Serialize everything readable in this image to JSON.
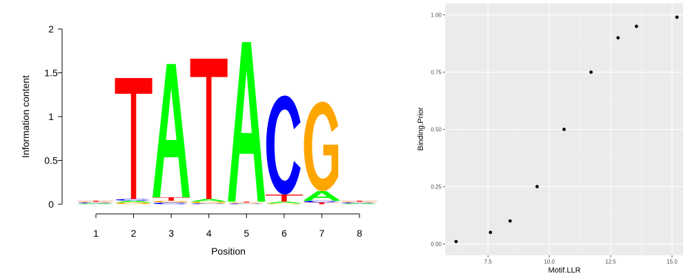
{
  "chart_data": [
    {
      "type": "sequence-logo",
      "xlabel": "Position",
      "ylabel": "Information content",
      "ylim": [
        0,
        2
      ],
      "yticks": [
        0,
        0.5,
        1,
        1.5,
        2
      ],
      "ytick_labels": [
        "0",
        "0.5",
        "1",
        "1.5",
        "2"
      ],
      "positions": [
        "1",
        "2",
        "3",
        "4",
        "5",
        "6",
        "7",
        "8"
      ],
      "colors": {
        "A": "#00ff00",
        "C": "#0000ff",
        "G": "#ffa500",
        "T": "#ff0000"
      },
      "columns": [
        {
          "position": 1,
          "letters": [
            {
              "base": "A",
              "height": 0.01
            },
            {
              "base": "C",
              "height": 0.01
            },
            {
              "base": "G",
              "height": 0.01
            },
            {
              "base": "T",
              "height": 0.01
            }
          ]
        },
        {
          "position": 2,
          "letters": [
            {
              "base": "G",
              "height": 0.02
            },
            {
              "base": "A",
              "height": 0.02
            },
            {
              "base": "C",
              "height": 0.02
            },
            {
              "base": "T",
              "height": 1.38
            }
          ]
        },
        {
          "position": 3,
          "letters": [
            {
              "base": "C",
              "height": 0.02
            },
            {
              "base": "G",
              "height": 0.02
            },
            {
              "base": "T",
              "height": 0.04
            },
            {
              "base": "A",
              "height": 1.52
            }
          ]
        },
        {
          "position": 4,
          "letters": [
            {
              "base": "C",
              "height": 0.01
            },
            {
              "base": "G",
              "height": 0.02
            },
            {
              "base": "A",
              "height": 0.03
            },
            {
              "base": "T",
              "height": 1.6
            }
          ]
        },
        {
          "position": 5,
          "letters": [
            {
              "base": "C",
              "height": 0.01
            },
            {
              "base": "G",
              "height": 0.01
            },
            {
              "base": "T",
              "height": 0.01
            },
            {
              "base": "A",
              "height": 1.82
            }
          ]
        },
        {
          "position": 6,
          "letters": [
            {
              "base": "G",
              "height": 0.01
            },
            {
              "base": "A",
              "height": 0.02
            },
            {
              "base": "T",
              "height": 0.08
            },
            {
              "base": "C",
              "height": 1.13
            }
          ]
        },
        {
          "position": 7,
          "letters": [
            {
              "base": "T",
              "height": 0.02
            },
            {
              "base": "C",
              "height": 0.02
            },
            {
              "base": "A",
              "height": 0.11
            },
            {
              "base": "G",
              "height": 1.02
            }
          ]
        },
        {
          "position": 8,
          "letters": [
            {
              "base": "A",
              "height": 0.01
            },
            {
              "base": "C",
              "height": 0.01
            },
            {
              "base": "G",
              "height": 0.01
            },
            {
              "base": "T",
              "height": 0.01
            }
          ]
        }
      ]
    },
    {
      "type": "scatter",
      "xlabel": "Motif.LLR",
      "ylabel": "Binding.Prior",
      "xlim": [
        5.75,
        15.45
      ],
      "ylim": [
        -0.05,
        1.05
      ],
      "xticks": [
        7.5,
        10.0,
        12.5,
        15.0
      ],
      "xtick_labels": [
        "7.5",
        "10.0",
        "12.5",
        "15.0"
      ],
      "yticks": [
        0,
        0.25,
        0.5,
        0.75,
        1.0
      ],
      "ytick_labels": [
        "0.00",
        "0.25",
        "0.50",
        "0.75",
        "1.00"
      ],
      "grid": true,
      "points": [
        {
          "x": 6.2,
          "y": 0.01
        },
        {
          "x": 7.6,
          "y": 0.05
        },
        {
          "x": 8.4,
          "y": 0.1
        },
        {
          "x": 9.5,
          "y": 0.25
        },
        {
          "x": 10.6,
          "y": 0.5
        },
        {
          "x": 11.7,
          "y": 0.75
        },
        {
          "x": 12.8,
          "y": 0.9
        },
        {
          "x": 13.55,
          "y": 0.95
        },
        {
          "x": 15.2,
          "y": 0.99
        }
      ]
    }
  ]
}
